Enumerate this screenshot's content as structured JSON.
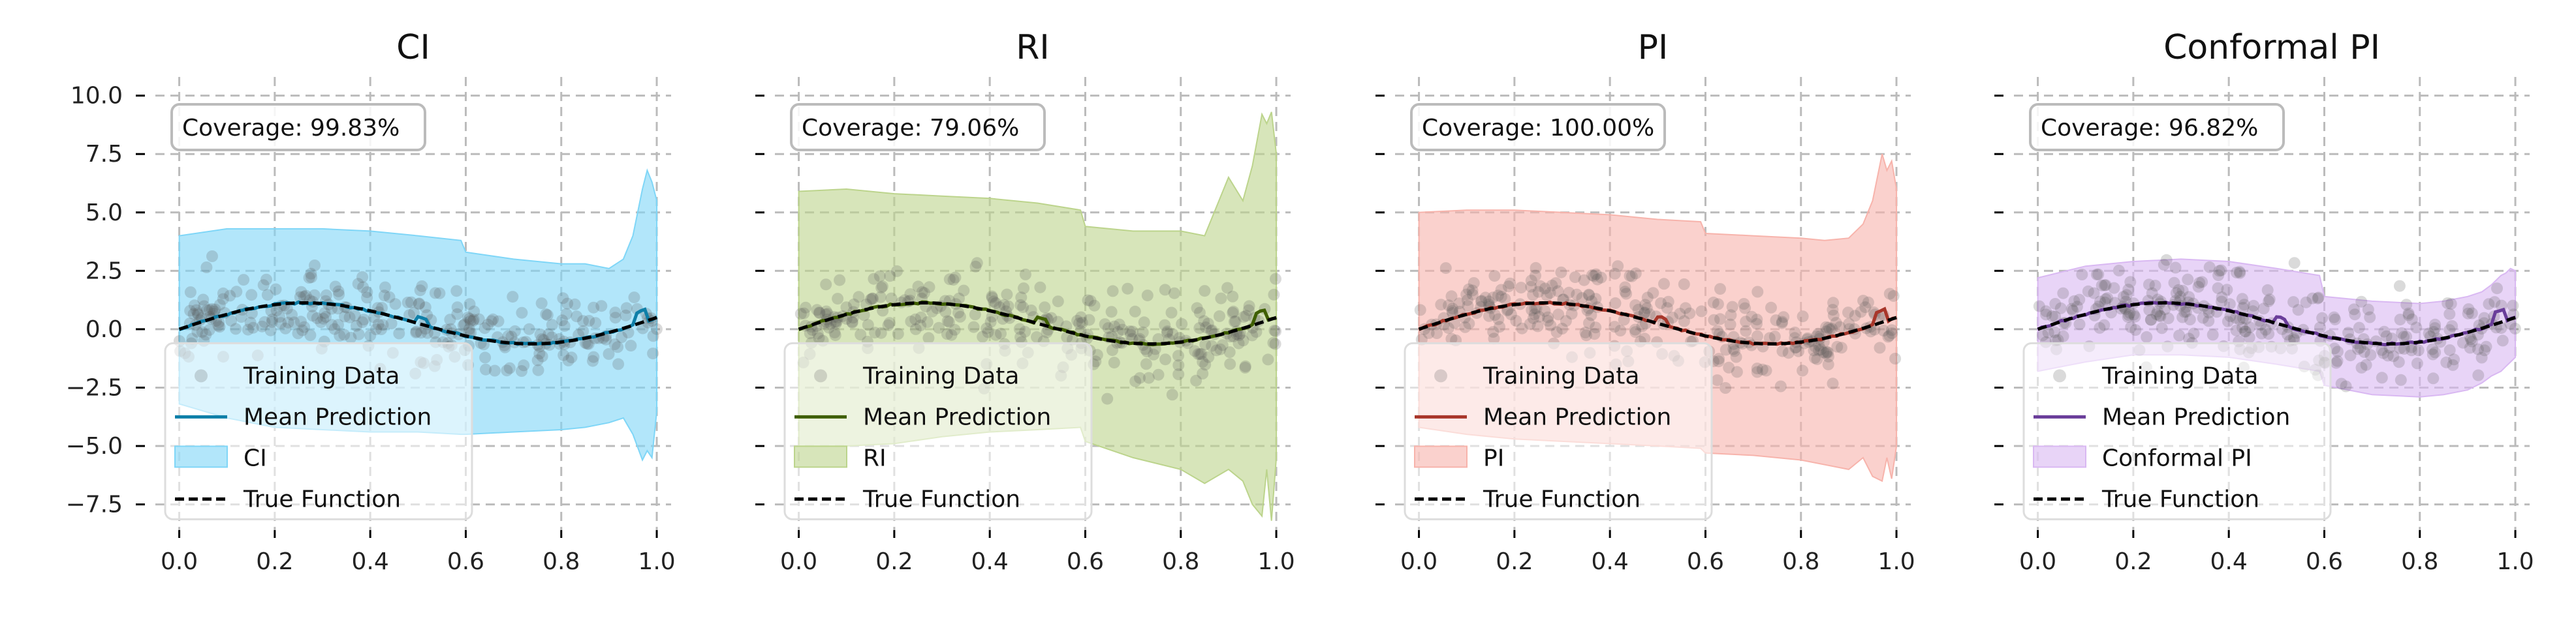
{
  "chart_data": [
    {
      "type": "line",
      "title": "CI",
      "interval_label": "CI",
      "coverage_text": "Coverage: 99.83%",
      "color": "#0e7fa8",
      "fill_color": "#7fd6f7",
      "legend": [
        "Training Data",
        "Mean Prediction",
        "CI",
        "True Function"
      ],
      "xlim": [
        -0.05,
        1.03
      ],
      "ylim": [
        -8.6,
        10.8
      ],
      "xticks": [
        "0.0",
        "0.2",
        "0.4",
        "0.6",
        "0.8",
        "1.0"
      ],
      "yticks": [
        "10.0",
        "7.5",
        "5.0",
        "2.5",
        "0.0",
        "−2.5",
        "−5.0",
        "−7.5"
      ],
      "band_x": [
        0.0,
        0.1,
        0.2,
        0.3,
        0.4,
        0.5,
        0.59,
        0.6,
        0.7,
        0.8,
        0.85,
        0.9,
        0.93,
        0.95,
        0.97,
        0.98,
        0.99,
        1.0
      ],
      "band_upper": [
        4.0,
        4.3,
        4.3,
        4.3,
        4.2,
        4.0,
        3.8,
        3.3,
        3.0,
        2.8,
        2.8,
        2.6,
        3.0,
        4.0,
        6.0,
        6.8,
        6.3,
        5.5
      ],
      "band_lower": [
        -3.2,
        -3.8,
        -4.2,
        -4.3,
        -4.4,
        -4.4,
        -4.5,
        -4.5,
        -4.4,
        -4.3,
        -4.2,
        -4.0,
        -3.8,
        -4.5,
        -5.6,
        -5.2,
        -5.5,
        -3.5
      ],
      "scatter_seed": 11
    },
    {
      "type": "line",
      "title": "RI",
      "interval_label": "RI",
      "coverage_text": "Coverage: 79.06%",
      "color": "#3f5f00",
      "fill_color": "#bcd48c",
      "legend": [
        "Training Data",
        "Mean Prediction",
        "RI",
        "True Function"
      ],
      "xlim": [
        -0.05,
        1.03
      ],
      "ylim": [
        -8.6,
        10.8
      ],
      "xticks": [
        "0.0",
        "0.2",
        "0.4",
        "0.6",
        "0.8",
        "1.0"
      ],
      "yticks": [
        "10.0",
        "7.5",
        "5.0",
        "2.5",
        "0.0",
        "−2.5",
        "−5.0",
        "−7.5"
      ],
      "band_x": [
        0.0,
        0.1,
        0.2,
        0.3,
        0.4,
        0.5,
        0.59,
        0.6,
        0.7,
        0.8,
        0.85,
        0.9,
        0.93,
        0.95,
        0.97,
        0.98,
        0.99,
        1.0
      ],
      "band_upper": [
        5.9,
        6.0,
        5.8,
        5.7,
        5.6,
        5.4,
        5.1,
        4.4,
        4.2,
        4.2,
        4.0,
        6.5,
        5.5,
        7.0,
        9.2,
        8.8,
        9.3,
        7.5
      ],
      "band_lower": [
        -5.0,
        -5.0,
        -4.9,
        -4.6,
        -4.4,
        -4.3,
        -4.2,
        -4.8,
        -5.5,
        -6.0,
        -6.6,
        -6.0,
        -6.5,
        -7.5,
        -8.0,
        -6.0,
        -8.2,
        -5.5
      ],
      "scatter_seed": 23
    },
    {
      "type": "line",
      "title": "PI",
      "interval_label": "PI",
      "coverage_text": "Coverage: 100.00%",
      "color": "#a8362a",
      "fill_color": "#f7b3ab",
      "legend": [
        "Training Data",
        "Mean Prediction",
        "PI",
        "True Function"
      ],
      "xlim": [
        -0.05,
        1.03
      ],
      "ylim": [
        -8.6,
        10.8
      ],
      "xticks": [
        "0.0",
        "0.2",
        "0.4",
        "0.6",
        "0.8",
        "1.0"
      ],
      "yticks": [
        "10.0",
        "7.5",
        "5.0",
        "2.5",
        "0.0",
        "−2.5",
        "−5.0",
        "−7.5"
      ],
      "band_x": [
        0.0,
        0.1,
        0.2,
        0.3,
        0.4,
        0.5,
        0.59,
        0.6,
        0.7,
        0.8,
        0.85,
        0.9,
        0.93,
        0.95,
        0.97,
        0.98,
        0.99,
        1.0
      ],
      "band_upper": [
        5.0,
        5.1,
        5.1,
        5.0,
        4.9,
        4.7,
        4.6,
        4.1,
        4.0,
        3.9,
        3.8,
        3.9,
        4.5,
        5.5,
        7.5,
        6.8,
        7.2,
        6.0
      ],
      "band_lower": [
        -4.2,
        -4.5,
        -4.7,
        -4.8,
        -4.9,
        -5.0,
        -5.1,
        -5.3,
        -5.4,
        -5.6,
        -5.8,
        -6.0,
        -5.5,
        -6.3,
        -6.5,
        -5.5,
        -6.4,
        -5.0
      ],
      "scatter_seed": 37
    },
    {
      "type": "line",
      "title": "Conformal PI",
      "interval_label": "Conformal PI",
      "coverage_text": "Coverage: 96.82%",
      "color": "#6a3d9a",
      "fill_color": "#d9b8f2",
      "legend": [
        "Training Data",
        "Mean Prediction",
        "Conformal PI",
        "True Function"
      ],
      "xlim": [
        -0.05,
        1.03
      ],
      "ylim": [
        -8.6,
        10.8
      ],
      "xticks": [
        "0.0",
        "0.2",
        "0.4",
        "0.6",
        "0.8",
        "1.0"
      ],
      "yticks": [
        "10.0",
        "7.5",
        "5.0",
        "2.5",
        "0.0",
        "−2.5",
        "−5.0",
        "−7.5"
      ],
      "band_x": [
        0.0,
        0.1,
        0.2,
        0.3,
        0.4,
        0.5,
        0.59,
        0.6,
        0.7,
        0.8,
        0.85,
        0.9,
        0.93,
        0.95,
        0.97,
        0.98,
        0.99,
        1.0
      ],
      "band_upper": [
        2.2,
        2.7,
        2.9,
        3.0,
        2.9,
        2.6,
        2.3,
        1.4,
        1.2,
        1.1,
        1.2,
        1.4,
        1.6,
        1.9,
        2.3,
        2.4,
        2.6,
        2.5
      ],
      "band_lower": [
        -1.8,
        -1.4,
        -1.1,
        -1.1,
        -1.2,
        -1.5,
        -1.8,
        -2.4,
        -2.8,
        -2.9,
        -2.8,
        -2.6,
        -2.3,
        -2.0,
        -1.8,
        -1.6,
        -1.4,
        -1.2
      ],
      "scatter_seed": 51
    }
  ]
}
